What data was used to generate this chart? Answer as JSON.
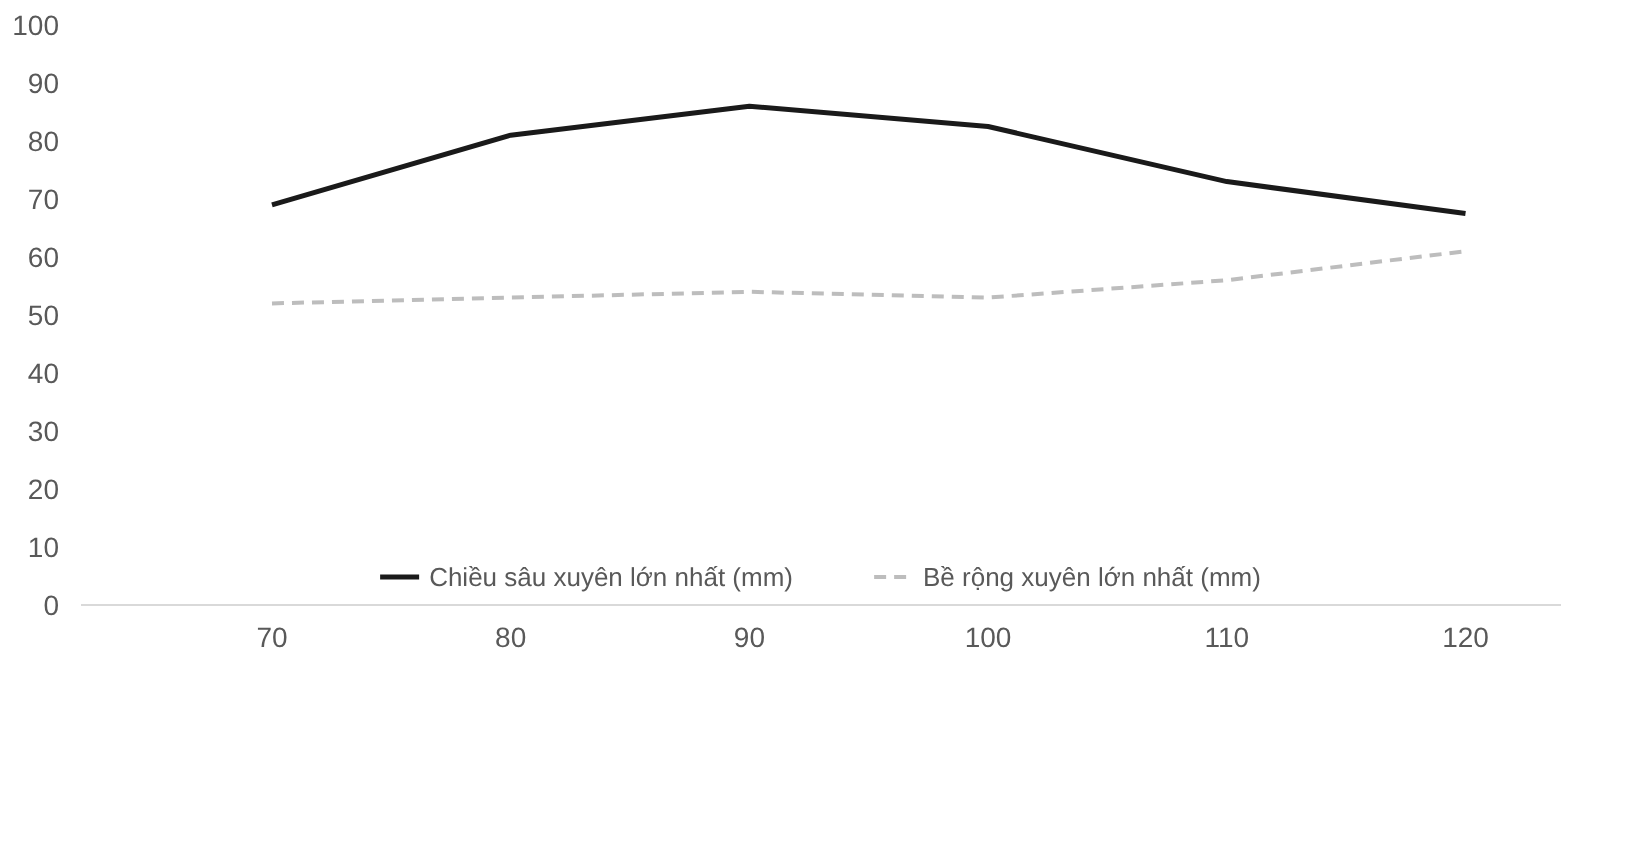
{
  "chart_data": {
    "type": "line",
    "x": [
      70,
      80,
      90,
      100,
      110,
      120
    ],
    "series": [
      {
        "name": "Chiều sâu xuyên lớn nhất (mm)",
        "color": "#1a1a1a",
        "values": [
          69,
          81,
          86,
          82.5,
          73,
          67.5
        ],
        "line_style": "solid"
      },
      {
        "name": "Bề rộng xuyên lớn nhất (mm)",
        "color": "#bdbdbd",
        "values": [
          52,
          53,
          54,
          53,
          56,
          61
        ],
        "line_style": "dashed"
      }
    ],
    "xlim": [
      62,
      124
    ],
    "xticks": [
      70,
      80,
      90,
      100,
      110,
      120
    ],
    "ylim": [
      0,
      100
    ],
    "yticks": [
      0,
      10,
      20,
      30,
      40,
      50,
      60,
      70,
      80,
      90,
      100
    ],
    "legend": "bottom",
    "grid": false
  }
}
